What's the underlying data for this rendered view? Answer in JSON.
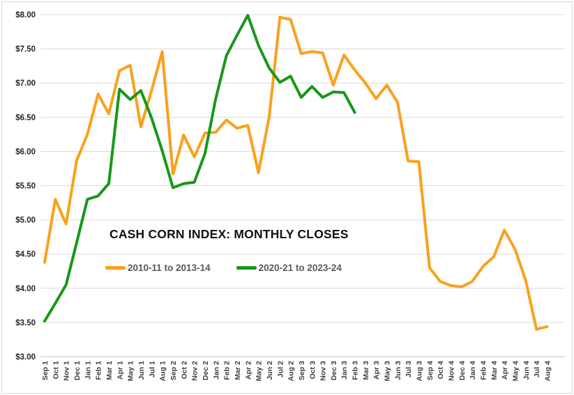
{
  "chart_data": {
    "type": "line",
    "title": "CASH CORN INDEX: MONTHLY CLOSES",
    "xlabel": "",
    "ylabel": "",
    "ylim": [
      3,
      8
    ],
    "grid": "horizontal",
    "legend_position": "inside-center-left",
    "gridline_color": "#d9d9d9",
    "axis_line_color": "#bfbfbf",
    "y_tick_labels": [
      "$8.00",
      "$7.50",
      "$7.00",
      "$6.50",
      "$6.00",
      "$5.50",
      "$5.00",
      "$4.50",
      "$4.00",
      "$3.50",
      "$3.00"
    ],
    "y_tick_values": [
      8.0,
      7.5,
      7.0,
      6.5,
      6.0,
      5.5,
      5.0,
      4.5,
      4.0,
      3.5,
      3.0
    ],
    "categories": [
      "Sep 1",
      "Oct 1",
      "Nov 1",
      "Dec 1",
      "Jan 1",
      "Feb 1",
      "Mar 1",
      "Apr 1",
      "May 1",
      "Jun 1",
      "Jul 1",
      "Aug 1",
      "Sep 2",
      "Oct 2",
      "Nov 2",
      "Dec 2",
      "Jan 2",
      "Feb 2",
      "Mar 2",
      "Apr 2",
      "May 2",
      "Jun 2",
      "Jul 2",
      "Aug 2",
      "Sep 3",
      "Oct 3",
      "Nov 3",
      "Dec 3",
      "Jan 3",
      "Feb 3",
      "Mar 3",
      "Apr 3",
      "May 3",
      "Jun 3",
      "Jul 3",
      "Aug 3",
      "Sep 4",
      "Oct 4",
      "Nov 4",
      "Dec 4",
      "Jan 4",
      "Feb 4",
      "Mar 4",
      "Apr 4",
      "May 4",
      "Jun 4",
      "Jul 4",
      "Aug 4"
    ],
    "series": [
      {
        "id": "2010-14",
        "name": "2010-11 to 2013-14",
        "color": "#F9A11C",
        "values": [
          4.38,
          5.3,
          4.94,
          5.87,
          6.25,
          6.84,
          6.55,
          7.18,
          7.26,
          6.36,
          6.89,
          7.46,
          5.67,
          6.24,
          5.92,
          6.27,
          6.28,
          6.46,
          6.34,
          6.38,
          5.69,
          6.5,
          7.96,
          7.93,
          7.43,
          7.46,
          7.44,
          6.97,
          7.41,
          7.19,
          7.0,
          6.77,
          6.97,
          6.72,
          5.86,
          5.85,
          4.3,
          4.1,
          4.04,
          4.02,
          4.1,
          4.32,
          4.46,
          4.85,
          4.57,
          4.11,
          3.4,
          3.44
        ]
      },
      {
        "id": "2020-24",
        "name": "2020-21 to 2023-24",
        "color": "#189818",
        "values": [
          3.52,
          3.78,
          4.05,
          4.67,
          5.3,
          5.35,
          5.53,
          6.91,
          6.76,
          6.89,
          6.49,
          6.01,
          5.47,
          5.53,
          5.55,
          5.97,
          6.77,
          7.4,
          7.7,
          7.99,
          7.55,
          7.22,
          7.01,
          7.1,
          6.79,
          6.95,
          6.79,
          6.87,
          6.86,
          6.57
        ]
      }
    ]
  }
}
